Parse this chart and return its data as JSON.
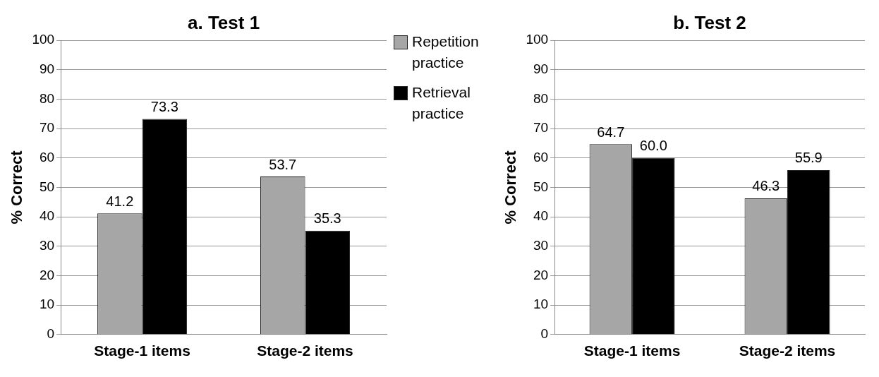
{
  "chart_data": [
    {
      "type": "bar",
      "title": "a. Test 1",
      "ylabel": "% Correct",
      "categories": [
        "Stage-1 items",
        "Stage-2 items"
      ],
      "ylim": [
        0,
        100
      ],
      "yticks": [
        0,
        10,
        20,
        30,
        40,
        50,
        60,
        70,
        80,
        90,
        100
      ],
      "grid": "y",
      "legend": "right",
      "series": [
        {
          "name": "Repetition practice",
          "color": "#a6a6a6",
          "values": [
            41.2,
            53.7
          ],
          "value_labels": [
            "41.2",
            "53.7"
          ]
        },
        {
          "name": "Retrieval practice",
          "color": "#000000",
          "values": [
            73.3,
            35.3
          ],
          "value_labels": [
            "73.3",
            "35.3"
          ]
        }
      ]
    },
    {
      "type": "bar",
      "title": "b. Test 2",
      "ylabel": "% Correct",
      "categories": [
        "Stage-1 items",
        "Stage-2 items"
      ],
      "ylim": [
        0,
        100
      ],
      "yticks": [
        0,
        10,
        20,
        30,
        40,
        50,
        60,
        70,
        80,
        90,
        100
      ],
      "grid": "y",
      "series": [
        {
          "color": "#a6a6a6",
          "values": [
            64.7,
            46.3
          ],
          "value_labels": [
            "64.7",
            "46.3"
          ]
        },
        {
          "color": "#000000",
          "values": [
            60.0,
            55.9
          ],
          "value_labels": [
            "60.0",
            "55.9"
          ]
        }
      ]
    }
  ]
}
